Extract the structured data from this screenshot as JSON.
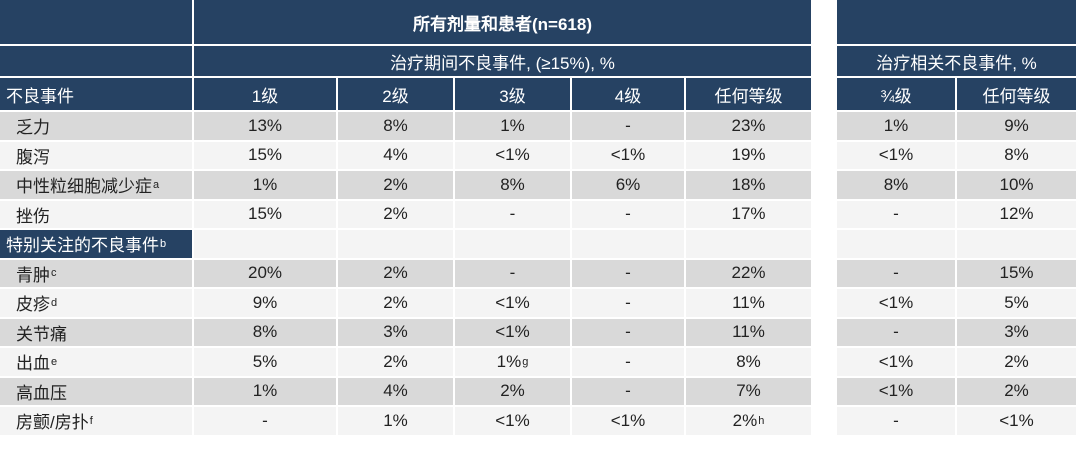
{
  "table": {
    "title": "所有剂量和患者(n=618)",
    "group_headers": {
      "treatment_emergent": "治疗期间不良事件, (≥15%), %",
      "treatment_related": "治疗相关不良事件, %"
    },
    "columns": {
      "adverse_event": "不良事件",
      "grade1": "1级",
      "grade2": "2级",
      "grade3": "3级",
      "grade4": "4级",
      "any_grade": "任何等级",
      "grade3_4": "¾级",
      "any_grade_related": "任何等级"
    },
    "rows": [
      {
        "label": "乏力",
        "values": [
          "13%",
          "8%",
          "1%",
          "-",
          "23%",
          "1%",
          "9%"
        ]
      },
      {
        "label": "腹泻",
        "values": [
          "15%",
          "4%",
          "<1%",
          "<1%",
          "19%",
          "<1%",
          "8%"
        ]
      },
      {
        "label": "中性粒细胞减少症",
        "label_sup": "a",
        "values": [
          "1%",
          "2%",
          "8%",
          "6%",
          "18%",
          "8%",
          "10%"
        ]
      },
      {
        "label": "挫伤",
        "values": [
          "15%",
          "2%",
          "-",
          "-",
          "17%",
          "-",
          "12%"
        ]
      },
      {
        "label": "特别关注的不良事件",
        "label_sup": "b",
        "section": true,
        "values": [
          "",
          "",
          "",
          "",
          "",
          "",
          ""
        ]
      },
      {
        "label": "青肿",
        "label_sup": "c",
        "values": [
          "20%",
          "2%",
          "-",
          "-",
          "22%",
          "-",
          "15%"
        ]
      },
      {
        "label": "皮疹",
        "label_sup": "d",
        "values": [
          "9%",
          "2%",
          "<1%",
          "-",
          "11%",
          "<1%",
          "5%"
        ]
      },
      {
        "label": "关节痛",
        "values": [
          "8%",
          "3%",
          "<1%",
          "-",
          "11%",
          "-",
          "3%"
        ]
      },
      {
        "label": "出血",
        "label_sup": "e",
        "values": [
          "5%",
          "2%",
          "1%",
          "-",
          "8%",
          "<1%",
          "2%"
        ],
        "value_sups": {
          "2": "g"
        }
      },
      {
        "label": "高血压",
        "values": [
          "1%",
          "4%",
          "2%",
          "-",
          "7%",
          "<1%",
          "2%"
        ]
      },
      {
        "label": "房颤/房扑",
        "label_sup": "f",
        "values": [
          "-",
          "1%",
          "<1%",
          "<1%",
          "2%",
          "-",
          "<1%"
        ],
        "value_sups": {
          "4": "h"
        }
      }
    ],
    "colors": {
      "header_navy": "#264263",
      "row_gray": "#D9D9D9",
      "row_light": "#F4F4F4",
      "separator_white": "#FFFFFF",
      "text_dark": "#222222",
      "header_text": "#FFFFFF"
    }
  }
}
